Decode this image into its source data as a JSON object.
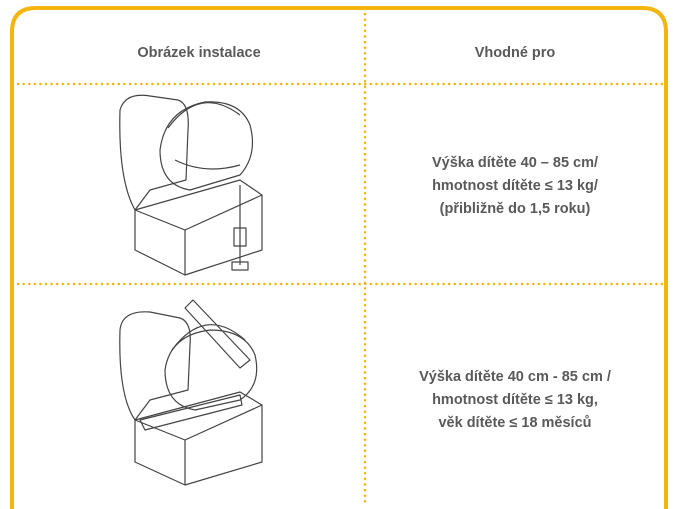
{
  "table": {
    "header": [
      "Obrázek instalace",
      "Vhodné pro"
    ],
    "rows": [
      {
        "lines": [
          "Výška dítěte 40 – 85 cm/",
          "hmotnost dítěte ≤ 13 kg/",
          "(přibližně do 1,5 roku)"
        ]
      },
      {
        "lines": [
          "Výška dítěte 40 cm - 85 cm /",
          "hmotnost dítěte ≤ 13 kg,",
          "věk dítěte ≤ 18 měsíců"
        ]
      }
    ]
  }
}
